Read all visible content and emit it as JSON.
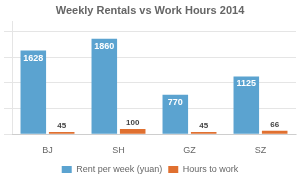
{
  "chart_data": {
    "type": "bar",
    "title": "Weekly Rentals vs Work Hours 2014",
    "categories": [
      "BJ",
      "SH",
      "GZ",
      "SZ"
    ],
    "series": [
      {
        "name": "Rent per week (yuan)",
        "color": "#5BA3D0",
        "values": [
          1628,
          1860,
          770,
          1125
        ]
      },
      {
        "name": "Hours to work",
        "color": "#E07030",
        "values": [
          45,
          100,
          45,
          66
        ]
      }
    ],
    "ylim": [
      0,
      2200
    ],
    "yticks": [
      0,
      500,
      1000,
      1500,
      2000
    ],
    "grid": true,
    "legend": "bottom",
    "data_labels": true,
    "tick_labels": "x"
  }
}
